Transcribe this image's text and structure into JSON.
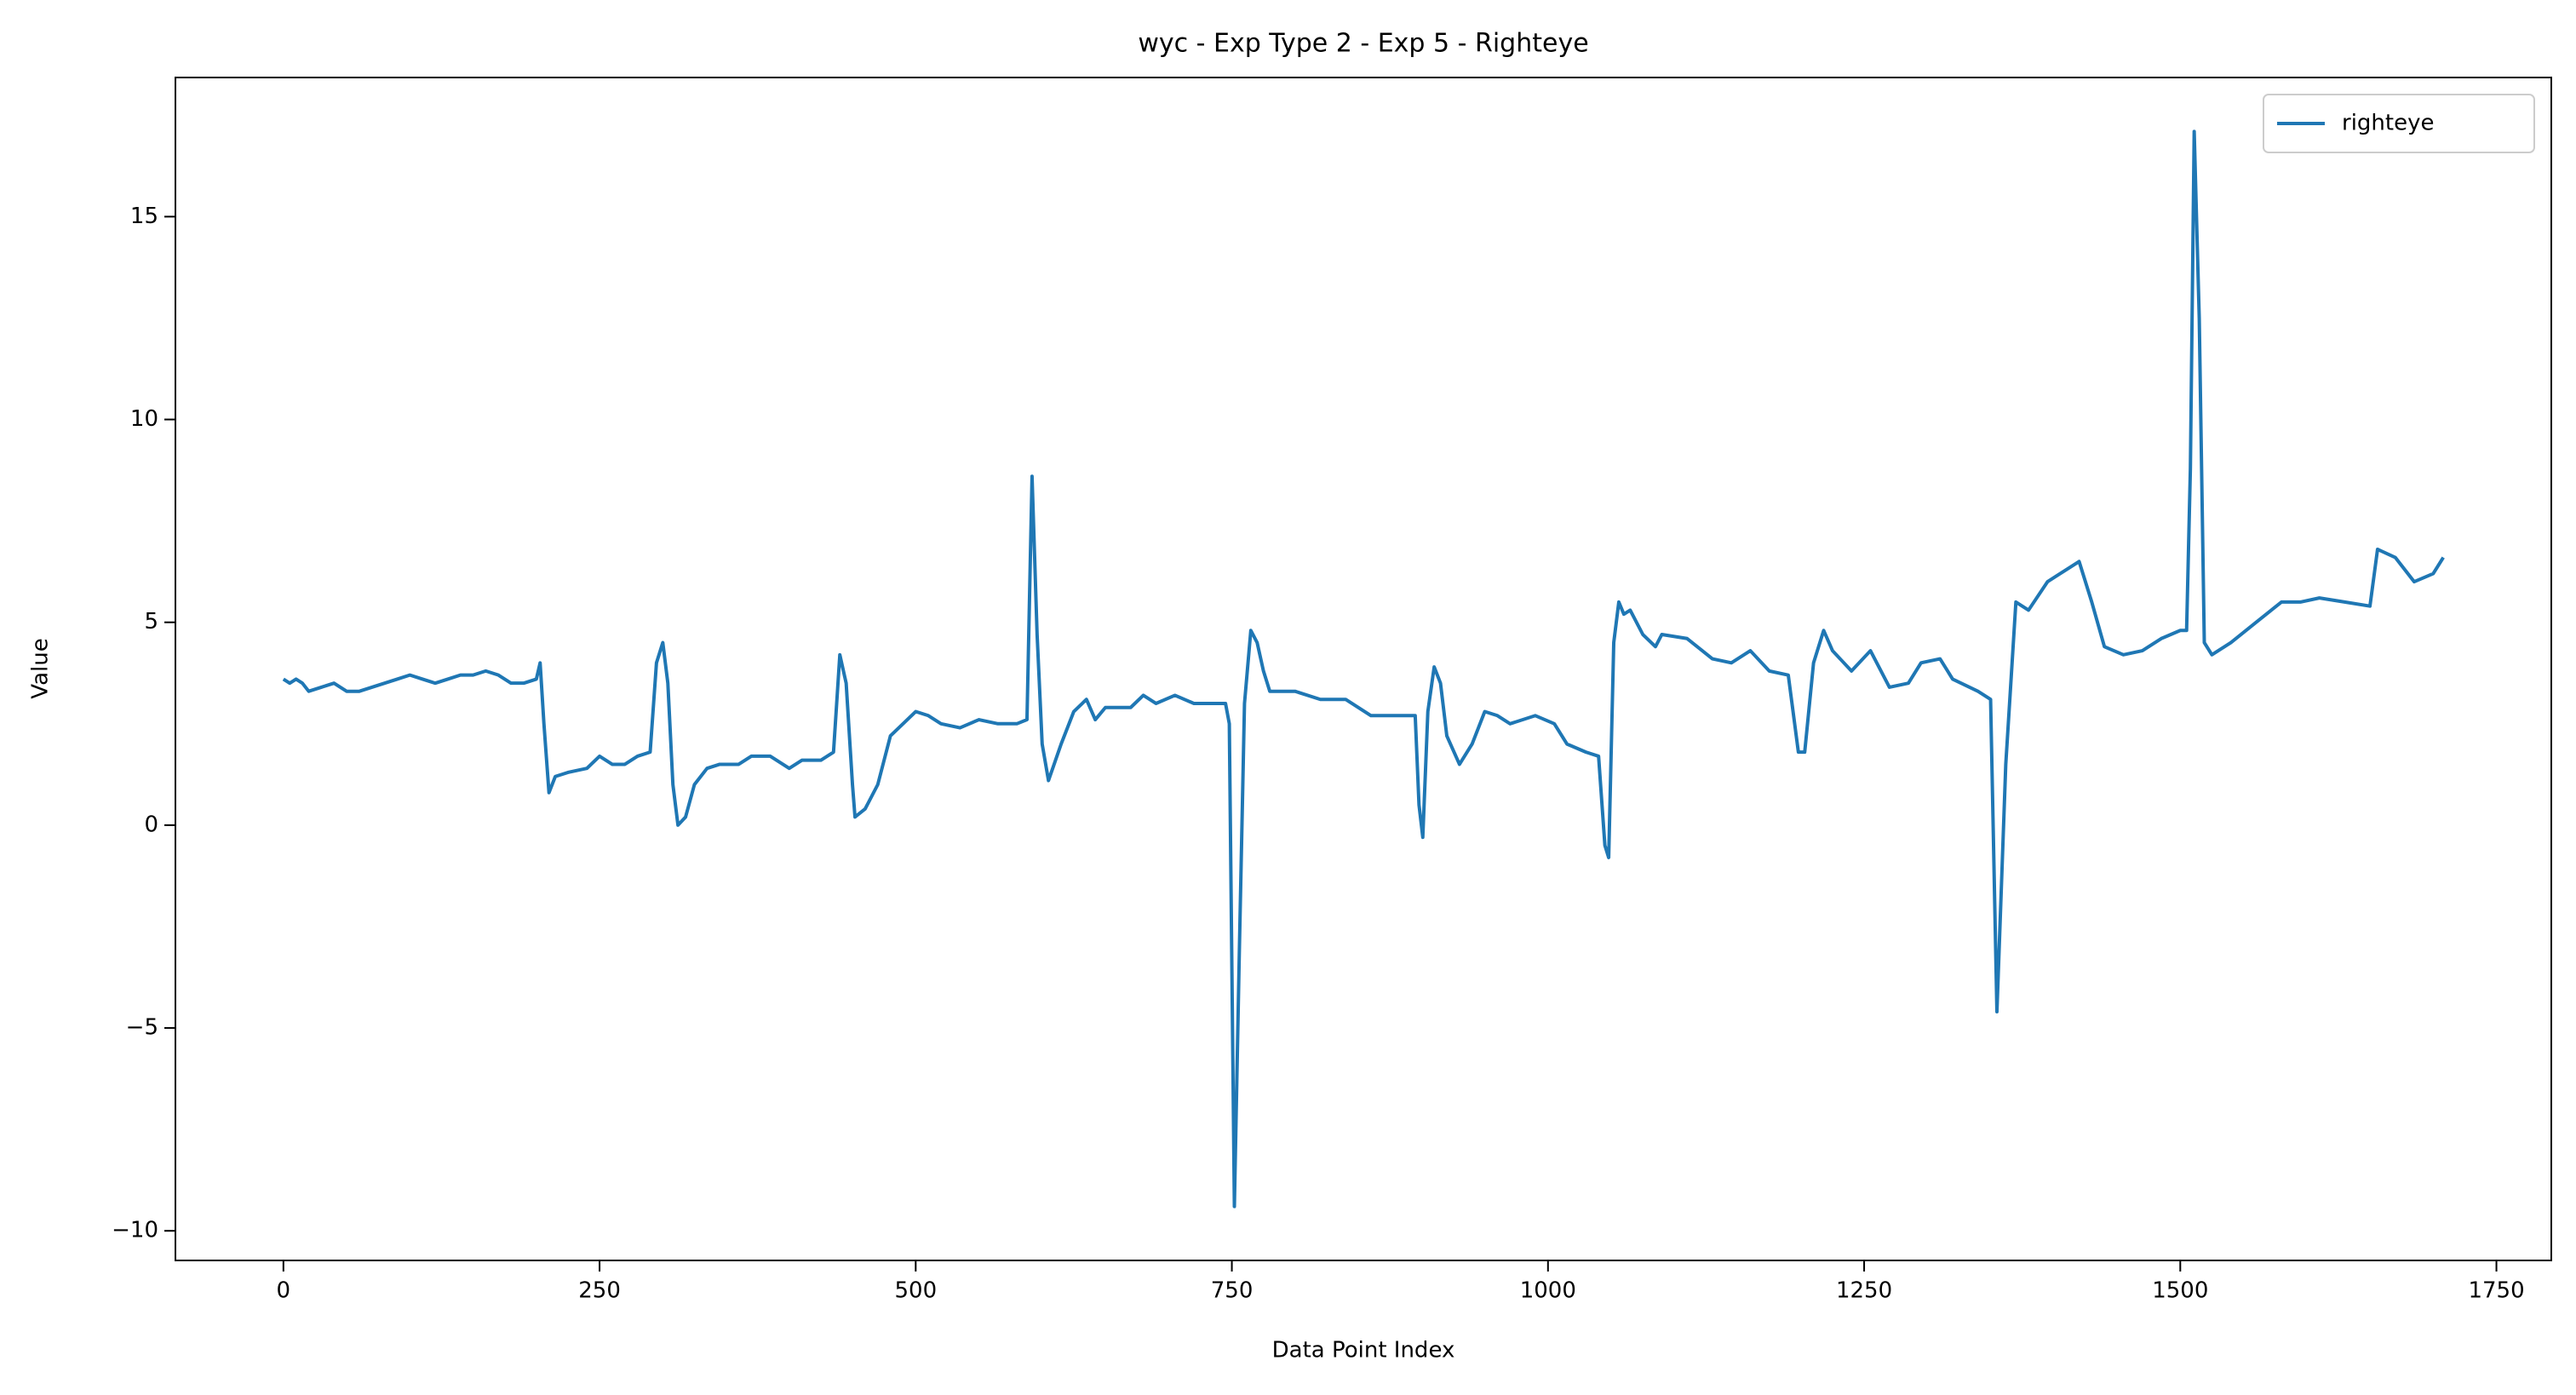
{
  "chart_data": {
    "type": "line",
    "title": "wyc - Exp Type 2 - Exp 5 - Righteye",
    "xlabel": "Data Point Index",
    "ylabel": "Value",
    "x": [
      0,
      5,
      10,
      15,
      20,
      30,
      40,
      50,
      60,
      70,
      80,
      90,
      100,
      110,
      120,
      130,
      140,
      150,
      160,
      170,
      180,
      190,
      200,
      203,
      206,
      210,
      215,
      225,
      240,
      250,
      260,
      270,
      280,
      290,
      295,
      300,
      304,
      308,
      312,
      318,
      325,
      335,
      345,
      360,
      370,
      385,
      400,
      410,
      425,
      435,
      440,
      445,
      450,
      452,
      460,
      470,
      480,
      490,
      500,
      510,
      520,
      535,
      550,
      565,
      580,
      588,
      592,
      596,
      600,
      605,
      615,
      625,
      635,
      642,
      650,
      670,
      680,
      690,
      705,
      720,
      735,
      745,
      748,
      752,
      756,
      760,
      765,
      770,
      775,
      780,
      800,
      820,
      840,
      860,
      885,
      895,
      898,
      901,
      905,
      910,
      915,
      920,
      930,
      940,
      950,
      960,
      970,
      990,
      1005,
      1015,
      1030,
      1040,
      1045,
      1048,
      1052,
      1056,
      1060,
      1065,
      1075,
      1085,
      1090,
      1110,
      1130,
      1145,
      1160,
      1175,
      1190,
      1198,
      1203,
      1210,
      1218,
      1225,
      1240,
      1255,
      1270,
      1285,
      1295,
      1310,
      1320,
      1340,
      1350,
      1355,
      1362,
      1370,
      1380,
      1395,
      1410,
      1420,
      1430,
      1440,
      1455,
      1470,
      1485,
      1500,
      1505,
      1508,
      1511,
      1515,
      1519,
      1525,
      1540,
      1560,
      1580,
      1595,
      1610,
      1630,
      1650,
      1656,
      1670,
      1685,
      1700,
      1708
    ],
    "series": [
      {
        "name": "righteye",
        "color": "#1f77b4",
        "values": [
          3.6,
          3.5,
          3.6,
          3.5,
          3.3,
          3.4,
          3.5,
          3.3,
          3.3,
          3.4,
          3.5,
          3.6,
          3.7,
          3.6,
          3.5,
          3.6,
          3.7,
          3.7,
          3.8,
          3.7,
          3.5,
          3.5,
          3.6,
          4.0,
          2.5,
          0.8,
          1.2,
          1.3,
          1.4,
          1.7,
          1.5,
          1.5,
          1.7,
          1.8,
          4.0,
          4.5,
          3.5,
          1.0,
          0.0,
          0.2,
          1.0,
          1.4,
          1.5,
          1.5,
          1.7,
          1.7,
          1.4,
          1.6,
          1.6,
          1.8,
          4.2,
          3.5,
          1.0,
          0.2,
          0.4,
          1.0,
          2.2,
          2.5,
          2.8,
          2.7,
          2.5,
          2.4,
          2.6,
          2.5,
          2.5,
          2.6,
          8.6,
          4.7,
          2.0,
          1.1,
          2.0,
          2.8,
          3.1,
          2.6,
          2.9,
          2.9,
          3.2,
          3.0,
          3.2,
          3.0,
          3.0,
          3.0,
          2.5,
          -9.4,
          -3.0,
          3.0,
          4.8,
          4.5,
          3.8,
          3.3,
          3.3,
          3.1,
          3.1,
          2.7,
          2.7,
          2.7,
          0.5,
          -0.3,
          2.8,
          3.9,
          3.5,
          2.2,
          1.5,
          2.0,
          2.8,
          2.7,
          2.5,
          2.7,
          2.5,
          2.0,
          1.8,
          1.7,
          -0.5,
          -0.8,
          4.5,
          5.5,
          5.2,
          5.3,
          4.7,
          4.4,
          4.7,
          4.6,
          4.1,
          4.0,
          4.3,
          3.8,
          3.7,
          1.8,
          1.8,
          4.0,
          4.8,
          4.3,
          3.8,
          4.3,
          3.4,
          3.5,
          4.0,
          4.1,
          3.6,
          3.3,
          3.1,
          -4.6,
          1.5,
          5.5,
          5.3,
          6.0,
          6.3,
          6.5,
          5.5,
          4.4,
          4.2,
          4.3,
          4.6,
          4.8,
          4.8,
          8.8,
          17.1,
          12.5,
          4.5,
          4.2,
          4.5,
          5.0,
          5.5,
          5.5,
          5.6,
          5.5,
          5.4,
          6.8,
          6.6,
          6.0,
          6.2,
          6.6
        ]
      }
    ],
    "xlim": [
      -85.4,
      1793.4
    ],
    "ylim": [
      -10.73,
      18.43
    ],
    "xticks": [
      0,
      250,
      500,
      750,
      1000,
      1250,
      1500,
      1750
    ],
    "yticks": [
      {
        "value": -10,
        "label": "−10"
      },
      {
        "value": -5,
        "label": "−5"
      },
      0,
      5,
      10,
      15
    ],
    "grid": false,
    "legend": "upper right"
  }
}
